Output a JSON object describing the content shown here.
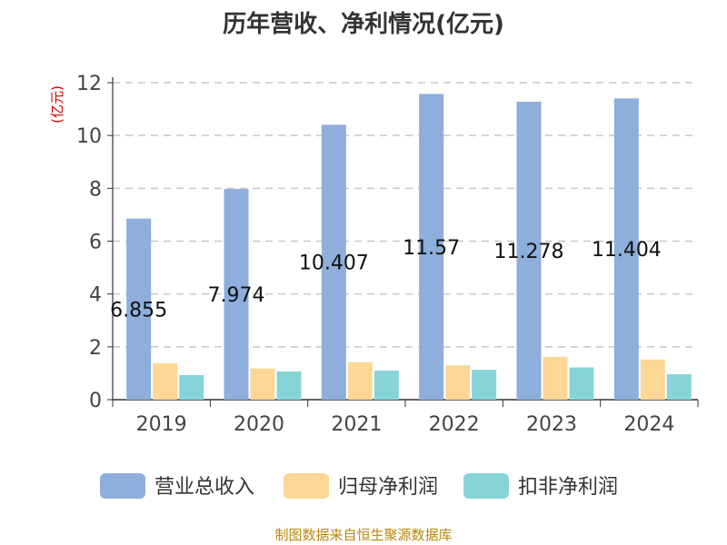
{
  "chart_data": {
    "type": "bar",
    "title": "历年营收、净利情况(亿元)",
    "ylabel": "(亿元)",
    "xlabel": "",
    "categories": [
      "2019",
      "2020",
      "2021",
      "2022",
      "2023",
      "2024"
    ],
    "ylim": [
      0,
      12
    ],
    "yticks": [
      0,
      2,
      4,
      6,
      8,
      10,
      12
    ],
    "grid": true,
    "legend_position": "bottom",
    "series": [
      {
        "name": "营业总收入",
        "color": "#8eaedb",
        "values": [
          6.855,
          7.974,
          10.407,
          11.57,
          11.278,
          11.404
        ],
        "data_labels": [
          "6.855",
          "7.974",
          "10.407",
          "11.57",
          "11.278",
          "11.404"
        ]
      },
      {
        "name": "归母净利润",
        "color": "#fdd795",
        "values": [
          1.38,
          1.18,
          1.42,
          1.3,
          1.62,
          1.52
        ]
      },
      {
        "name": "扣非净利润",
        "color": "#86d4d8",
        "values": [
          0.93,
          1.07,
          1.1,
          1.13,
          1.22,
          0.96
        ]
      }
    ]
  },
  "source_note": "制图数据来自恒生聚源数据库"
}
